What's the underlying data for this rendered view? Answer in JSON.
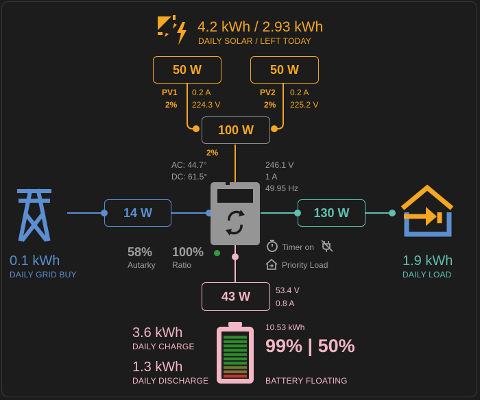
{
  "solar": {
    "daily_text": "4.2 kWh / 2.93 kWh",
    "daily_label": "DAILY SOLAR / LEFT TODAY",
    "pv1": {
      "power": "50 W",
      "name": "PV1",
      "pct": "2%",
      "current": "0.2 A",
      "voltage": "224.3 V"
    },
    "pv2": {
      "power": "50 W",
      "name": "PV2",
      "pct": "2%",
      "current": "0.2 A",
      "voltage": "225.2 V"
    },
    "total_power": "100 W",
    "total_pct": "2%"
  },
  "inverter": {
    "ac_temp": "AC: 44.7°",
    "dc_temp": "DC: 61.5°",
    "voltage": "246.1 V",
    "current": "1 A",
    "frequency": "49.95 Hz",
    "timer_label": "Timer on",
    "priority_label": "Priority Load"
  },
  "grid": {
    "power": "14 W",
    "daily_value": "0.1 kWh",
    "daily_label": "DAILY GRID BUY"
  },
  "stats": {
    "autarky_value": "58%",
    "autarky_label": "Autarky",
    "ratio_value": "100%",
    "ratio_label": "Ratio"
  },
  "load": {
    "power": "130 W",
    "daily_value": "1.9 kWh",
    "daily_label": "DAILY LOAD"
  },
  "battery": {
    "power": "43 W",
    "voltage": "53.4 V",
    "current": "0.8 A",
    "daily_charge_value": "3.6 kWh",
    "daily_charge_label": "DAILY CHARGE",
    "daily_discharge_value": "1.3 kWh",
    "daily_discharge_label": "DAILY DISCHARGE",
    "energy": "10.53 kWh",
    "soc_text": "99% | 50%",
    "status": "BATTERY FLOATING",
    "soc_level": 0.99
  },
  "colors": {
    "solar": "#f5a623",
    "grid": "#5b8fd1",
    "load": "#5fbfb1",
    "battery": "#f3b6c4",
    "inverter": "#959595"
  }
}
